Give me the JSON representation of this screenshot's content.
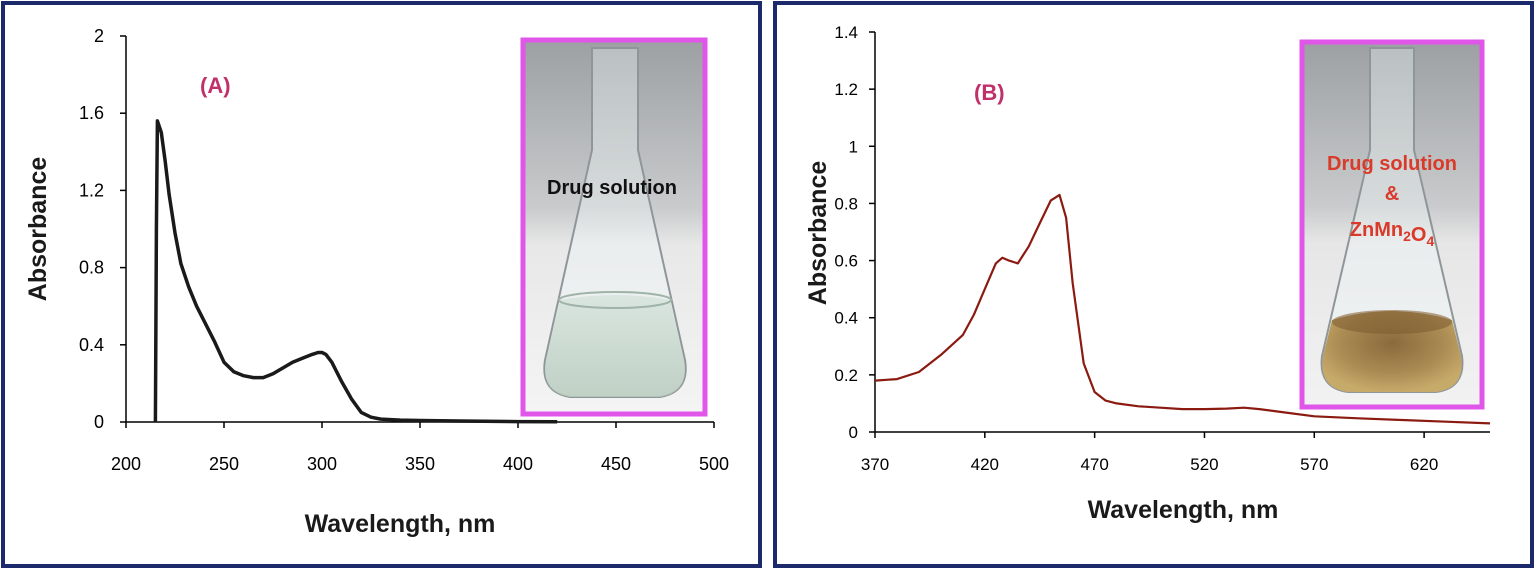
{
  "chart_data": [
    {
      "type": "line",
      "panel_label": "(A)",
      "xlabel": "Wavelength, nm",
      "ylabel": "Absorbance",
      "xlim": [
        200,
        500
      ],
      "ylim": [
        0,
        2
      ],
      "xticks": [
        "200",
        "250",
        "300",
        "350",
        "400",
        "450",
        "500"
      ],
      "yticks": [
        "0",
        "0.4",
        "0.8",
        "1.2",
        "1.6",
        "2"
      ],
      "grid": false,
      "colors": {
        "line": "#1a1a1a",
        "inset_border": "#e056e8",
        "label": "#c0306a"
      },
      "inset_caption_lines": [
        "Drug solution"
      ],
      "series": [
        {
          "x": [
            215,
            215.5,
            216,
            218,
            220,
            222,
            225,
            228,
            232,
            236,
            240,
            245,
            250,
            255,
            260,
            265,
            270,
            275,
            280,
            285,
            290,
            295,
            298,
            300,
            302,
            305,
            310,
            315,
            320,
            325,
            330,
            340,
            350,
            370,
            400,
            420
          ],
          "y": [
            0,
            1.0,
            1.56,
            1.5,
            1.35,
            1.18,
            0.98,
            0.82,
            0.7,
            0.6,
            0.52,
            0.42,
            0.31,
            0.26,
            0.24,
            0.23,
            0.23,
            0.25,
            0.28,
            0.31,
            0.33,
            0.35,
            0.36,
            0.36,
            0.35,
            0.31,
            0.21,
            0.12,
            0.05,
            0.025,
            0.015,
            0.01,
            0.008,
            0.005,
            0.002,
            0.001
          ]
        }
      ]
    },
    {
      "type": "line",
      "panel_label": "(B)",
      "xlabel": "Wavelength, nm",
      "ylabel": "Absorbance",
      "xlim": [
        370,
        650
      ],
      "ylim": [
        0,
        1.4
      ],
      "xticks": [
        "370",
        "420",
        "470",
        "520",
        "570",
        "620"
      ],
      "yticks": [
        "0",
        "0.2",
        "0.4",
        "0.6",
        "0.8",
        "1",
        "1.2",
        "1.4"
      ],
      "grid": false,
      "colors": {
        "line": "#8b1a10",
        "inset_border": "#e056e8",
        "caption": "#d93a2a",
        "label": "#c0306a"
      },
      "inset_caption_lines": [
        "Drug solution",
        "&",
        "ZnMn2O4"
      ],
      "series": [
        {
          "x": [
            370,
            380,
            390,
            400,
            410,
            415,
            420,
            425,
            428,
            431,
            435,
            440,
            445,
            450,
            454,
            457,
            460,
            465,
            470,
            475,
            480,
            490,
            500,
            510,
            520,
            530,
            538,
            545,
            555,
            570,
            590,
            610,
            630,
            650
          ],
          "y": [
            0.18,
            0.185,
            0.21,
            0.27,
            0.34,
            0.41,
            0.5,
            0.59,
            0.61,
            0.6,
            0.59,
            0.65,
            0.73,
            0.81,
            0.83,
            0.75,
            0.52,
            0.24,
            0.14,
            0.11,
            0.1,
            0.09,
            0.085,
            0.08,
            0.08,
            0.082,
            0.085,
            0.08,
            0.07,
            0.055,
            0.048,
            0.042,
            0.036,
            0.03
          ]
        }
      ]
    }
  ]
}
